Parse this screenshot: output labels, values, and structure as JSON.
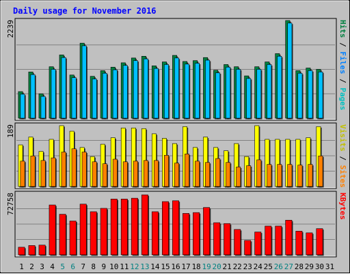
{
  "chart_data": {
    "type": "bar",
    "title": "Daily usage for November 2016",
    "categories": [
      "1",
      "2",
      "3",
      "4",
      "5",
      "6",
      "7",
      "8",
      "9",
      "10",
      "11",
      "12",
      "13",
      "14",
      "15",
      "16",
      "17",
      "18",
      "19",
      "20",
      "21",
      "22",
      "23",
      "24",
      "25",
      "26",
      "27",
      "28",
      "29",
      "30",
      "31"
    ],
    "weekend_days": [
      "5",
      "6",
      "12",
      "13",
      "19",
      "20",
      "26",
      "27"
    ],
    "panels": [
      {
        "id": "hits",
        "max_label": "2239",
        "ymax": 2239,
        "side_labels": [
          "Pages",
          "Files",
          "Hits"
        ],
        "series": [
          {
            "name": "Hits",
            "color": "#008040",
            "values": [
              610,
              1060,
              560,
              1180,
              1450,
              990,
              1720,
              960,
              1090,
              1170,
              1270,
              1380,
              1420,
              1200,
              1290,
              1440,
              1300,
              1320,
              1390,
              1100,
              1230,
              1180,
              970,
              1180,
              1290,
              1480,
              2239,
              1090,
              1150,
              1120,
              null
            ]
          },
          {
            "name": "Files",
            "color": "#00c0ff",
            "values": [
              550,
              1000,
              500,
              1120,
              1390,
              930,
              1660,
              900,
              1030,
              1110,
              1210,
              1320,
              1360,
              1140,
              1230,
              1380,
              1240,
              1260,
              1330,
              1040,
              1170,
              1120,
              910,
              1120,
              1230,
              1420,
              2180,
              1030,
              1090,
              1060,
              null
            ]
          },
          {
            "name": "Pages",
            "color": "#00e0ff",
            "values": [
              null,
              null,
              null,
              null,
              null,
              null,
              null,
              null,
              null,
              null,
              null,
              null,
              null,
              null,
              null,
              null,
              null,
              null,
              null,
              null,
              null,
              null,
              null,
              null,
              null,
              null,
              null,
              null,
              null,
              null,
              null
            ]
          }
        ]
      },
      {
        "id": "visits",
        "max_label": "189",
        "ymax": 189,
        "side_labels": [
          "Sites",
          "Visits"
        ],
        "series": [
          {
            "name": "Visits",
            "color": "#ffff00",
            "values": [
              128,
              152,
              108,
              145,
              187,
              170,
              120,
              92,
              130,
              150,
              180,
              180,
              178,
              162,
              148,
              132,
              184,
              120,
              152,
              120,
              110,
              132,
              92,
              187,
              145,
              145,
              145,
              145,
              150,
              184,
              null
            ]
          },
          {
            "name": "Sites",
            "color": "#ff8000",
            "values": [
              78,
              94,
              80,
              88,
              106,
              116,
              106,
              76,
              70,
              84,
              76,
              78,
              80,
              80,
              96,
              72,
              100,
              78,
              74,
              86,
              74,
              60,
              64,
              82,
              68,
              68,
              68,
              66,
              68,
              94,
              null
            ]
          }
        ]
      },
      {
        "id": "kbytes",
        "max_label": "72758",
        "ymax": 72758,
        "side_labels": [
          "KBytes"
        ],
        "series": [
          {
            "name": "KBytes",
            "color": "#ff0000",
            "values": [
              9000,
              11000,
              11500,
              59000,
              48000,
              40000,
              60000,
              51000,
              55000,
              66000,
              66000,
              67000,
              71000,
              51000,
              63000,
              64000,
              49000,
              50000,
              56000,
              38000,
              37000,
              30000,
              17000,
              27000,
              34000,
              34000,
              41000,
              28000,
              26000,
              31000,
              null
            ]
          }
        ]
      }
    ]
  }
}
